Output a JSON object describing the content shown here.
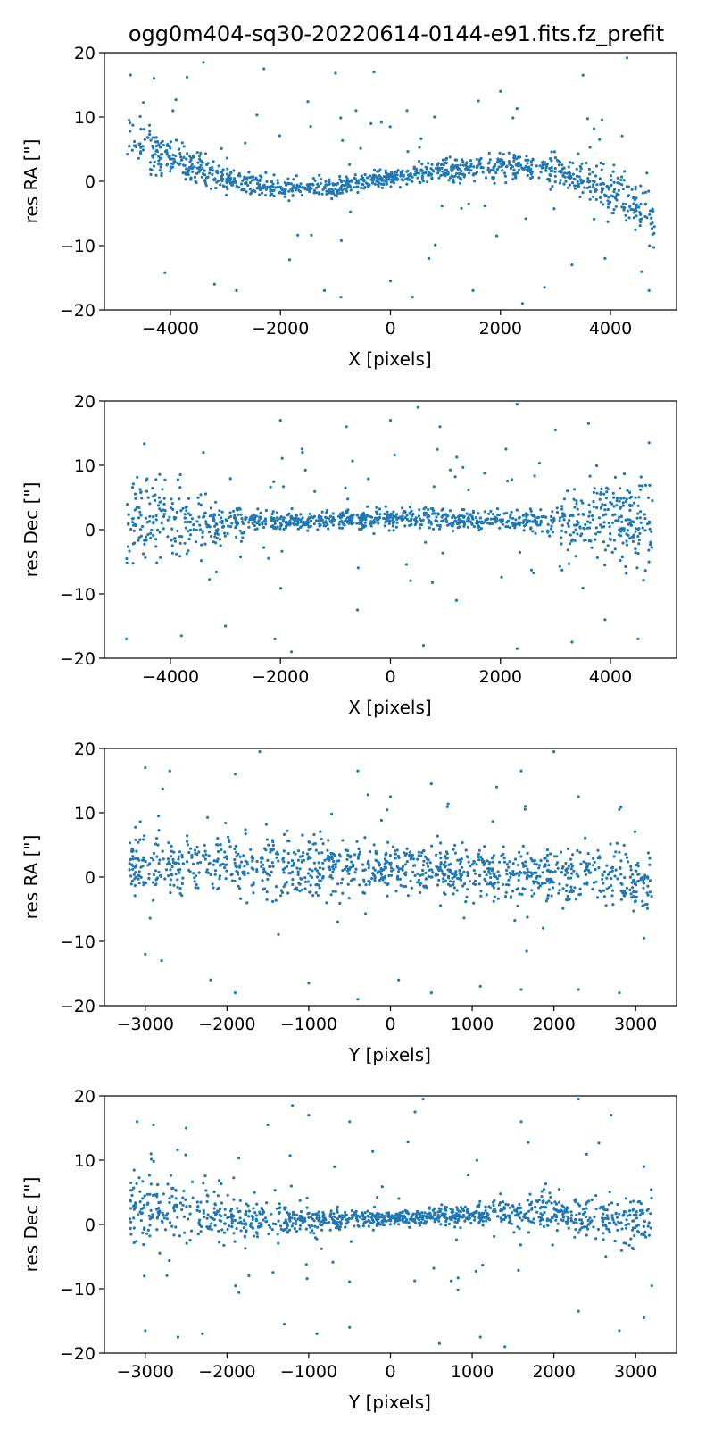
{
  "figure": {
    "title": "ogg0m404-sq30-20220614-0144-e91.fits.fz_prefit",
    "point_color": "#1f77b4"
  },
  "chart_data": [
    {
      "type": "scatter",
      "xlabel": "X [pixels]",
      "ylabel": "res RA [\"]",
      "xlim": [
        -5200,
        5200
      ],
      "ylim": [
        -20,
        20
      ],
      "xticks": [
        -4000,
        -2000,
        0,
        2000,
        4000
      ],
      "yticks": [
        -20,
        -10,
        0,
        10,
        20
      ],
      "grid": false,
      "trend": [
        [
          -4800,
          6.5
        ],
        [
          -4000,
          3.5
        ],
        [
          -3000,
          0.3
        ],
        [
          -2000,
          -1.2
        ],
        [
          -1000,
          -0.8
        ],
        [
          0,
          0.7
        ],
        [
          1000,
          1.8
        ],
        [
          2000,
          2.5
        ],
        [
          3000,
          1.8
        ],
        [
          4000,
          -1.5
        ],
        [
          4800,
          -6
        ]
      ],
      "spread": [
        [
          -4800,
          2.0
        ],
        [
          -3000,
          1.0
        ],
        [
          0,
          0.6
        ],
        [
          3000,
          1.3
        ],
        [
          4800,
          2.2
        ]
      ],
      "outliers": [
        [
          -4300,
          16
        ],
        [
          -3900,
          12.7
        ],
        [
          -3700,
          16.2
        ],
        [
          -3400,
          18.5
        ],
        [
          -2300,
          17.5
        ],
        [
          -1500,
          12.4
        ],
        [
          -1000,
          16.8
        ],
        [
          -300,
          17
        ],
        [
          300,
          11
        ],
        [
          800,
          10
        ],
        [
          1600,
          12.5
        ],
        [
          2000,
          14
        ],
        [
          2300,
          11.3
        ],
        [
          3500,
          16.5
        ],
        [
          3800,
          6.5
        ],
        [
          4300,
          19.2
        ],
        [
          -4100,
          -14.2
        ],
        [
          -3200,
          -16
        ],
        [
          -2800,
          -17
        ],
        [
          -1200,
          -17
        ],
        [
          -900,
          -18
        ],
        [
          0,
          -15.5
        ],
        [
          400,
          -18
        ],
        [
          700,
          -12
        ],
        [
          1500,
          -17
        ],
        [
          2400,
          -19
        ],
        [
          2800,
          -16.5
        ],
        [
          3300,
          -13
        ],
        [
          3900,
          -12
        ],
        [
          4700,
          -17
        ]
      ],
      "seed": 11
    },
    {
      "type": "scatter",
      "xlabel": "X [pixels]",
      "ylabel": "res Dec [\"]",
      "xlim": [
        -5200,
        5200
      ],
      "ylim": [
        -20,
        20
      ],
      "xticks": [
        -4000,
        -2000,
        0,
        2000,
        4000
      ],
      "yticks": [
        -20,
        -10,
        0,
        10,
        20
      ],
      "grid": false,
      "trend": [
        [
          -4800,
          1.5
        ],
        [
          -3000,
          1
        ],
        [
          -1000,
          1.5
        ],
        [
          0,
          1.8
        ],
        [
          1500,
          1.5
        ],
        [
          3000,
          1.2
        ],
        [
          4800,
          1.5
        ]
      ],
      "spread": [
        [
          -4800,
          3.8
        ],
        [
          -3500,
          2.2
        ],
        [
          -2500,
          0.8
        ],
        [
          0,
          0.7
        ],
        [
          2500,
          0.8
        ],
        [
          3200,
          2.2
        ],
        [
          4800,
          3.8
        ]
      ],
      "outliers": [
        [
          -4800,
          -17
        ],
        [
          -3800,
          -16.5
        ],
        [
          -3400,
          12
        ],
        [
          -2000,
          17
        ],
        [
          -1600,
          12
        ],
        [
          -800,
          16
        ],
        [
          0,
          17
        ],
        [
          500,
          19
        ],
        [
          900,
          16
        ],
        [
          2100,
          12.5
        ],
        [
          2300,
          19.5
        ],
        [
          3000,
          15.5
        ],
        [
          3600,
          16.5
        ],
        [
          4700,
          13.5
        ],
        [
          -3000,
          -15
        ],
        [
          -2100,
          -17
        ],
        [
          -1800,
          -19
        ],
        [
          -600,
          -12.5
        ],
        [
          600,
          -18
        ],
        [
          1200,
          -11
        ],
        [
          2300,
          -18.5
        ],
        [
          3300,
          -17.5
        ],
        [
          3900,
          -14
        ],
        [
          4500,
          -17
        ]
      ],
      "seed": 23
    },
    {
      "type": "scatter",
      "xlabel": "Y [pixels]",
      "ylabel": "res RA [\"]",
      "xlim": [
        -3500,
        3500
      ],
      "ylim": [
        -20,
        20
      ],
      "xticks": [
        -3000,
        -2000,
        -1000,
        0,
        1000,
        2000,
        3000
      ],
      "yticks": [
        -20,
        -10,
        0,
        10,
        20
      ],
      "grid": false,
      "trend": [
        [
          -3200,
          1.8
        ],
        [
          -2000,
          1.5
        ],
        [
          -1000,
          1.5
        ],
        [
          0,
          1.5
        ],
        [
          1000,
          0.8
        ],
        [
          2000,
          0.2
        ],
        [
          3200,
          -0.8
        ]
      ],
      "spread": [
        [
          -3200,
          2.5
        ],
        [
          0,
          2.0
        ],
        [
          3200,
          2.3
        ]
      ],
      "outliers": [
        [
          -3000,
          17
        ],
        [
          -2700,
          16.5
        ],
        [
          -1900,
          16
        ],
        [
          -1600,
          19.5
        ],
        [
          -400,
          16.5
        ],
        [
          0,
          12.5
        ],
        [
          500,
          14.5
        ],
        [
          1300,
          14
        ],
        [
          1600,
          16.5
        ],
        [
          2000,
          19.5
        ],
        [
          2300,
          12.5
        ],
        [
          2800,
          10.5
        ],
        [
          -3000,
          -12
        ],
        [
          -2800,
          -13
        ],
        [
          -2200,
          -16
        ],
        [
          -1900,
          -18
        ],
        [
          -1000,
          -16.5
        ],
        [
          -400,
          -19
        ],
        [
          100,
          -16
        ],
        [
          500,
          -18
        ],
        [
          1100,
          -17
        ],
        [
          1600,
          -17.5
        ],
        [
          2300,
          -17.5
        ],
        [
          2800,
          -18
        ],
        [
          3100,
          -9.5
        ]
      ],
      "seed": 37
    },
    {
      "type": "scatter",
      "xlabel": "Y [pixels]",
      "ylabel": "res Dec [\"]",
      "xlim": [
        -3500,
        3500
      ],
      "ylim": [
        -20,
        20
      ],
      "xticks": [
        -3000,
        -2000,
        -1000,
        0,
        1000,
        2000,
        3000
      ],
      "yticks": [
        -20,
        -10,
        0,
        10,
        20
      ],
      "grid": false,
      "trend": [
        [
          -3200,
          2.5
        ],
        [
          -2500,
          1.8
        ],
        [
          -2000,
          1
        ],
        [
          -1000,
          0.5
        ],
        [
          0,
          1
        ],
        [
          1000,
          1.5
        ],
        [
          2000,
          2
        ],
        [
          3200,
          0.5
        ]
      ],
      "spread": [
        [
          -3200,
          3.2
        ],
        [
          -2000,
          2.0
        ],
        [
          -1000,
          1.0
        ],
        [
          0,
          0.5
        ],
        [
          1000,
          0.8
        ],
        [
          2000,
          1.5
        ],
        [
          3200,
          2.3
        ]
      ],
      "outliers": [
        [
          -3100,
          16
        ],
        [
          -2900,
          15.5
        ],
        [
          -2500,
          15
        ],
        [
          -1500,
          15.5
        ],
        [
          -1200,
          18.5
        ],
        [
          -1000,
          17
        ],
        [
          -500,
          16
        ],
        [
          300,
          17.5
        ],
        [
          400,
          19.5
        ],
        [
          1600,
          16
        ],
        [
          2300,
          19.5
        ],
        [
          2700,
          17
        ],
        [
          3100,
          9
        ],
        [
          -3000,
          -16.5
        ],
        [
          -2600,
          -17.5
        ],
        [
          -2300,
          -17
        ],
        [
          -1300,
          -15.5
        ],
        [
          -900,
          -17
        ],
        [
          -500,
          -16
        ],
        [
          600,
          -18.5
        ],
        [
          1100,
          -17.5
        ],
        [
          1400,
          -19
        ],
        [
          2300,
          -13.5
        ],
        [
          2800,
          -16.5
        ],
        [
          3100,
          -14.5
        ]
      ],
      "seed": 53
    }
  ]
}
